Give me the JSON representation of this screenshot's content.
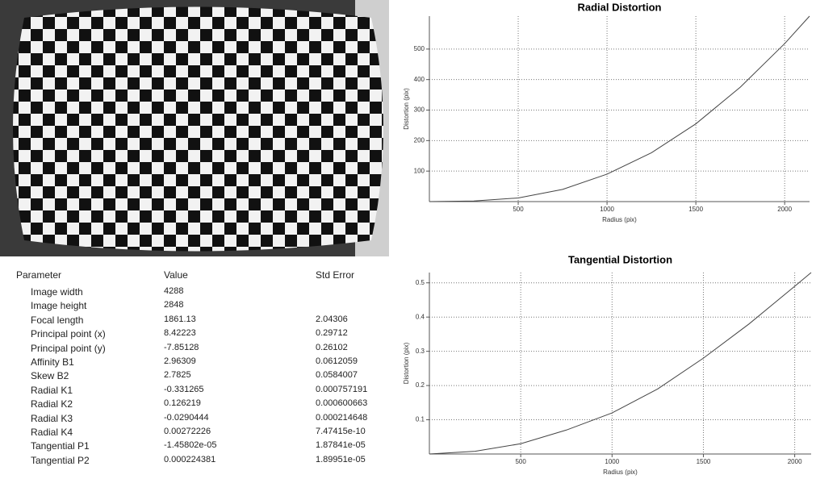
{
  "table": {
    "header": [
      "Parameter",
      "Value",
      "Std Error"
    ],
    "rows": [
      [
        "Image width",
        "4288"
      ],
      [
        "Image height",
        "2848"
      ],
      [
        "Focal length",
        "1861.13",
        "2.04306"
      ],
      [
        "Principal point (x)",
        "8.42223",
        "0.29712"
      ],
      [
        "Principal point (y)",
        "-7.85128",
        "0.26102"
      ],
      [
        "Affinity B1",
        "2.96309",
        "0.0612059"
      ],
      [
        "Skew B2",
        "2.7825",
        "0.0584007"
      ],
      [
        "Radial K1",
        "-0.331265",
        "0.000757191"
      ],
      [
        "Radial K2",
        "0.126219",
        "0.000600663"
      ],
      [
        "Radial K3",
        "-0.0290444",
        "0.000214648"
      ],
      [
        "Radial K4",
        "0.00272226",
        "7.47415e-10"
      ],
      [
        "Tangential P1",
        "-1.45802e-05",
        "1.87841e-05"
      ],
      [
        "Tangential P2",
        "0.000224381",
        "1.89951e-05"
      ]
    ]
  },
  "chart_data": [
    {
      "type": "line",
      "title": "Radial Distortion",
      "x_label": "Radius (pix)",
      "y_label": "Distortion (pix)",
      "x": [
        0,
        250,
        500,
        750,
        1000,
        1250,
        1500,
        1750,
        2000,
        2140
      ],
      "values": [
        0,
        2,
        12,
        40,
        90,
        160,
        255,
        375,
        518,
        608
      ],
      "color": "#444444",
      "xlim": [
        0,
        2140
      ],
      "ylim": [
        0,
        608
      ],
      "xticks": [
        500,
        1000,
        1500,
        2000
      ],
      "yticks": [
        100,
        200,
        300,
        400,
        500
      ],
      "grid": true
    },
    {
      "type": "line",
      "title": "Tangential Distortion",
      "x_label": "Radius (pix)",
      "y_label": "Distortion (pix)",
      "x": [
        0,
        250,
        500,
        750,
        1000,
        1250,
        1500,
        1750,
        2000,
        2090
      ],
      "values": [
        0,
        0.008,
        0.03,
        0.07,
        0.12,
        0.19,
        0.28,
        0.38,
        0.49,
        0.53
      ],
      "color": "#444444",
      "xlim": [
        0,
        2090
      ],
      "ylim": [
        0,
        0.53
      ],
      "xticks": [
        500,
        1000,
        1500,
        2000
      ],
      "yticks": [
        0.1,
        0.2,
        0.3,
        0.4,
        0.5
      ],
      "grid": true
    }
  ]
}
